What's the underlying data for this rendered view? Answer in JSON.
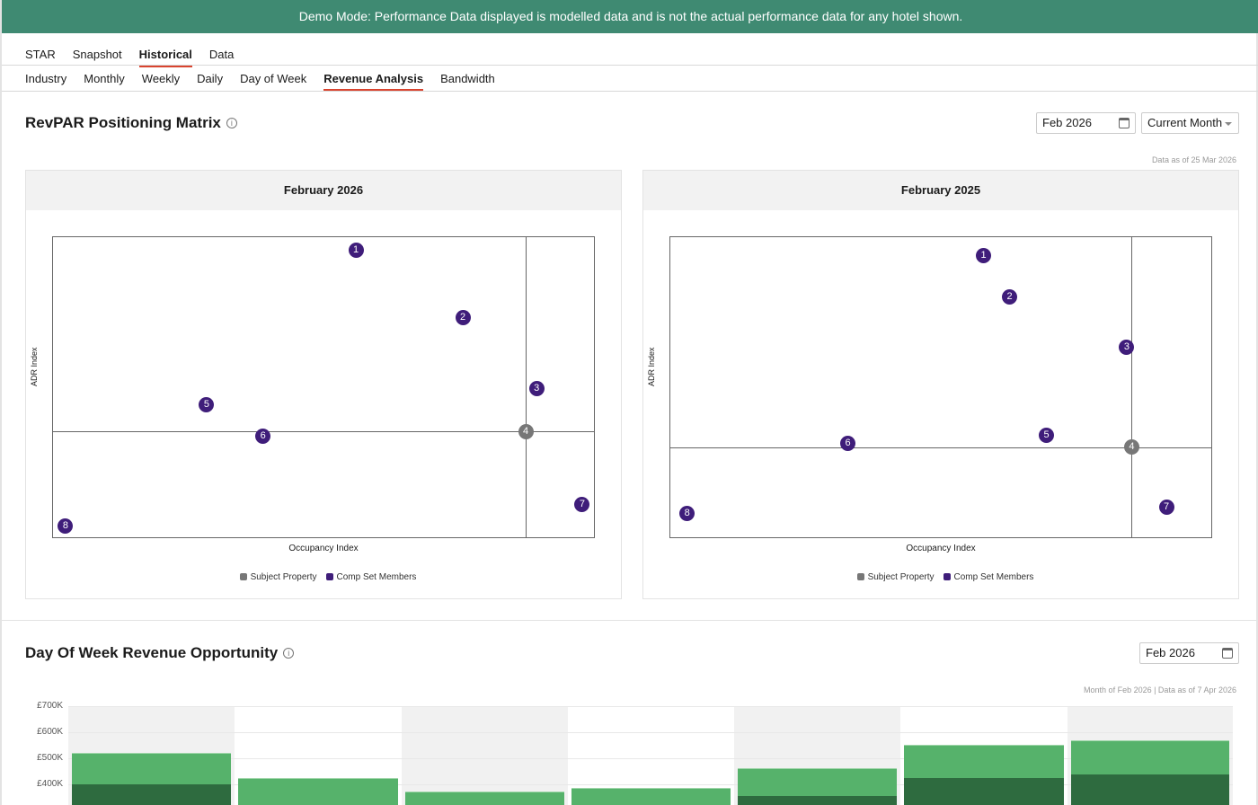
{
  "banner": "Demo Mode: Performance Data displayed is modelled data and is not the actual performance data for any hotel shown.",
  "nav_primary": [
    "STAR",
    "Snapshot",
    "Historical",
    "Data"
  ],
  "nav_primary_active": "Historical",
  "nav_secondary": [
    "Industry",
    "Monthly",
    "Weekly",
    "Daily",
    "Day of Week",
    "Revenue Analysis",
    "Bandwidth"
  ],
  "nav_secondary_active": "Revenue Analysis",
  "matrix": {
    "title": "RevPAR Positioning Matrix",
    "date": "Feb 2026",
    "period": "Current Month",
    "data_as_of": "Data as of 25 Mar 2026"
  },
  "opportunity": {
    "title": "Day Of Week Revenue Opportunity",
    "date": "Feb 2026",
    "data_as_of": "Month of Feb 2026 | Data as of 7 Apr 2026"
  },
  "colors": {
    "subject": "#777777",
    "comp": "#3f1d7a",
    "bar_light": "#56b26b",
    "bar_dark": "#2e6b3f",
    "banner": "#3f8a72"
  },
  "chart_data": [
    {
      "type": "scatter",
      "title": "February 2026",
      "xlabel": "Occupancy Index",
      "ylabel": "ADR Index",
      "xlim": [
        0,
        100
      ],
      "ylim": [
        0,
        100
      ],
      "legend": [
        "Subject Property",
        "Comp Set Members"
      ],
      "legend_position": "bottom",
      "crosshair": {
        "x": 87.1,
        "y": 35.7
      },
      "points": [
        {
          "label": "1",
          "x": 55.8,
          "y": 95.8,
          "series": "comp"
        },
        {
          "label": "2",
          "x": 75.5,
          "y": 73.5,
          "series": "comp"
        },
        {
          "label": "3",
          "x": 89.1,
          "y": 50,
          "series": "comp"
        },
        {
          "label": "4",
          "x": 87.1,
          "y": 35.7,
          "series": "subject"
        },
        {
          "label": "5",
          "x": 28.3,
          "y": 44.6,
          "series": "comp"
        },
        {
          "label": "6",
          "x": 38.7,
          "y": 34.2,
          "series": "comp"
        },
        {
          "label": "7",
          "x": 97.5,
          "y": 11.6,
          "series": "comp"
        },
        {
          "label": "8",
          "x": 2.3,
          "y": 4.2,
          "series": "comp"
        }
      ]
    },
    {
      "type": "scatter",
      "title": "February 2025",
      "xlabel": "Occupancy Index",
      "ylabel": "ADR Index",
      "xlim": [
        0,
        100
      ],
      "ylim": [
        0,
        100
      ],
      "legend": [
        "Subject Property",
        "Comp Set Members"
      ],
      "legend_position": "bottom",
      "crosshair": {
        "x": 85.0,
        "y": 30.4
      },
      "points": [
        {
          "label": "1",
          "x": 57.7,
          "y": 93.8,
          "series": "comp"
        },
        {
          "label": "2",
          "x": 62.5,
          "y": 80.1,
          "series": "comp"
        },
        {
          "label": "3",
          "x": 84.1,
          "y": 63.4,
          "series": "comp"
        },
        {
          "label": "4",
          "x": 85.0,
          "y": 30.4,
          "series": "subject"
        },
        {
          "label": "5",
          "x": 69.3,
          "y": 34.5,
          "series": "comp"
        },
        {
          "label": "6",
          "x": 32.7,
          "y": 31.8,
          "series": "comp"
        },
        {
          "label": "7",
          "x": 91.4,
          "y": 10.7,
          "series": "comp"
        },
        {
          "label": "8",
          "x": 3.1,
          "y": 8.6,
          "series": "comp"
        }
      ]
    },
    {
      "type": "bar",
      "title": "Day Of Week Revenue Opportunity",
      "yticks": [
        "£700K",
        "£600K",
        "£500K",
        "£400K"
      ],
      "ytick_values": [
        700,
        600,
        500,
        400
      ],
      "units": "£K",
      "ylim_top": 700,
      "series": [
        {
          "name": "total",
          "values": [
            520,
            424,
            372,
            386,
            462,
            552,
            569
          ]
        },
        {
          "name": "actual",
          "values": [
            400,
            320,
            320,
            320,
            355,
            424,
            438
          ]
        }
      ]
    }
  ]
}
